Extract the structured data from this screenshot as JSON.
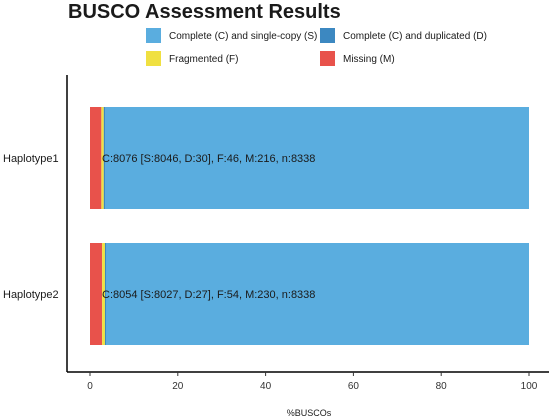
{
  "chart_data": {
    "type": "bar",
    "orientation": "horizontal",
    "stacked": true,
    "title": "BUSCO Assessment Results",
    "xlabel": "%BUSCOs",
    "ylabel": "",
    "xlim": [
      0,
      100
    ],
    "xticks": [
      0,
      20,
      40,
      60,
      80,
      100
    ],
    "grid": false,
    "legend_position": "top",
    "categories": [
      "Haplotype1",
      "Haplotype2"
    ],
    "series": [
      {
        "name": "Complete (C) and single-copy (S)",
        "color": "#5aaddf",
        "values": [
          96.5,
          96.27
        ]
      },
      {
        "name": "Complete (C) and duplicated (D)",
        "color": "#3c88c1",
        "values": [
          0.36,
          0.32
        ]
      },
      {
        "name": "Fragmented (F)",
        "color": "#f0e041",
        "values": [
          0.55,
          0.65
        ]
      },
      {
        "name": "Missing (M)",
        "color": "#e8524b",
        "values": [
          2.59,
          2.76
        ]
      }
    ],
    "stack_order": [
      "Missing (M)",
      "Fragmented (F)",
      "Complete (C) and duplicated (D)",
      "Complete (C) and single-copy (S)"
    ],
    "legend_order": [
      "Complete (C) and single-copy (S)",
      "Complete (C) and duplicated (D)",
      "Fragmented (F)",
      "Missing (M)"
    ],
    "bar_labels": [
      "C:8076 [S:8046, D:30], F:46, M:216, n:8338",
      "C:8054 [S:8027, D:27], F:54, M:230, n:8338"
    ]
  }
}
